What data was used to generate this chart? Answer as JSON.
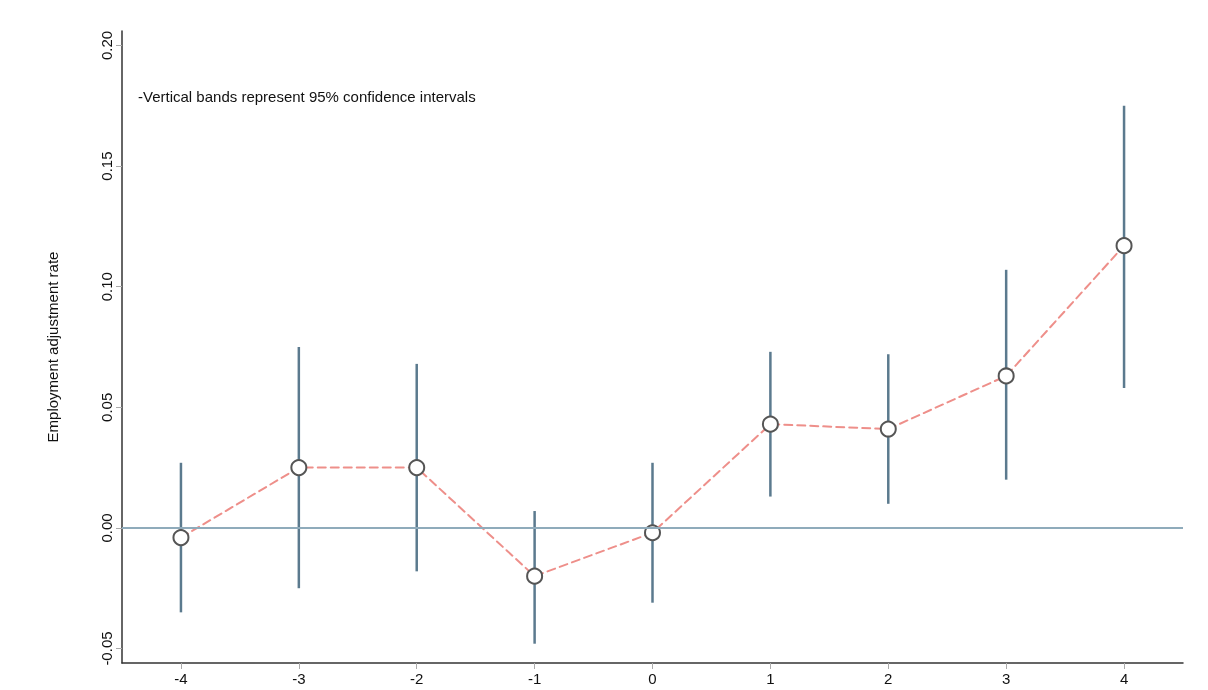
{
  "chart_data": {
    "type": "line",
    "ylabel": "Employment adjustment rate",
    "annotations": [
      "-Vertical bands represent 95% confidence intervals"
    ],
    "x": [
      -4,
      -3,
      -2,
      -1,
      0,
      1,
      2,
      3,
      4
    ],
    "series": [
      {
        "color": "#ee8f8a",
        "values": [
          -0.004,
          0.025,
          0.025,
          -0.02,
          -0.002,
          0.043,
          0.041,
          0.063,
          0.117
        ],
        "errors": [
          [
            -0.035,
            0.027
          ],
          [
            -0.025,
            0.075
          ],
          [
            -0.018,
            0.068
          ],
          [
            -0.048,
            0.007
          ],
          [
            -0.031,
            0.027
          ],
          [
            0.013,
            0.073
          ],
          [
            0.01,
            0.072
          ],
          [
            0.02,
            0.107
          ],
          [
            0.058,
            0.175
          ]
        ]
      }
    ],
    "xlim": [
      -4.5,
      4.5
    ],
    "xticks": [
      -4,
      -3,
      -2,
      -1,
      0,
      1,
      2,
      3,
      4
    ],
    "ylim": [
      -0.056,
      0.206
    ],
    "yticks": [
      {
        "value": -0.05,
        "label": "-0.05"
      },
      {
        "value": 0,
        "label": "0.00"
      },
      {
        "value": 0.05,
        "label": "0.05"
      },
      {
        "value": 0.1,
        "label": "0.10"
      },
      {
        "value": 0.15,
        "label": "0.15"
      },
      {
        "value": 0.2,
        "label": "0.20"
      }
    ],
    "ref_lines": [
      {
        "axis": "y",
        "value": 0,
        "color": "#8fabbb"
      }
    ],
    "grid": false,
    "marker": "circle",
    "line_style": "dashed"
  }
}
